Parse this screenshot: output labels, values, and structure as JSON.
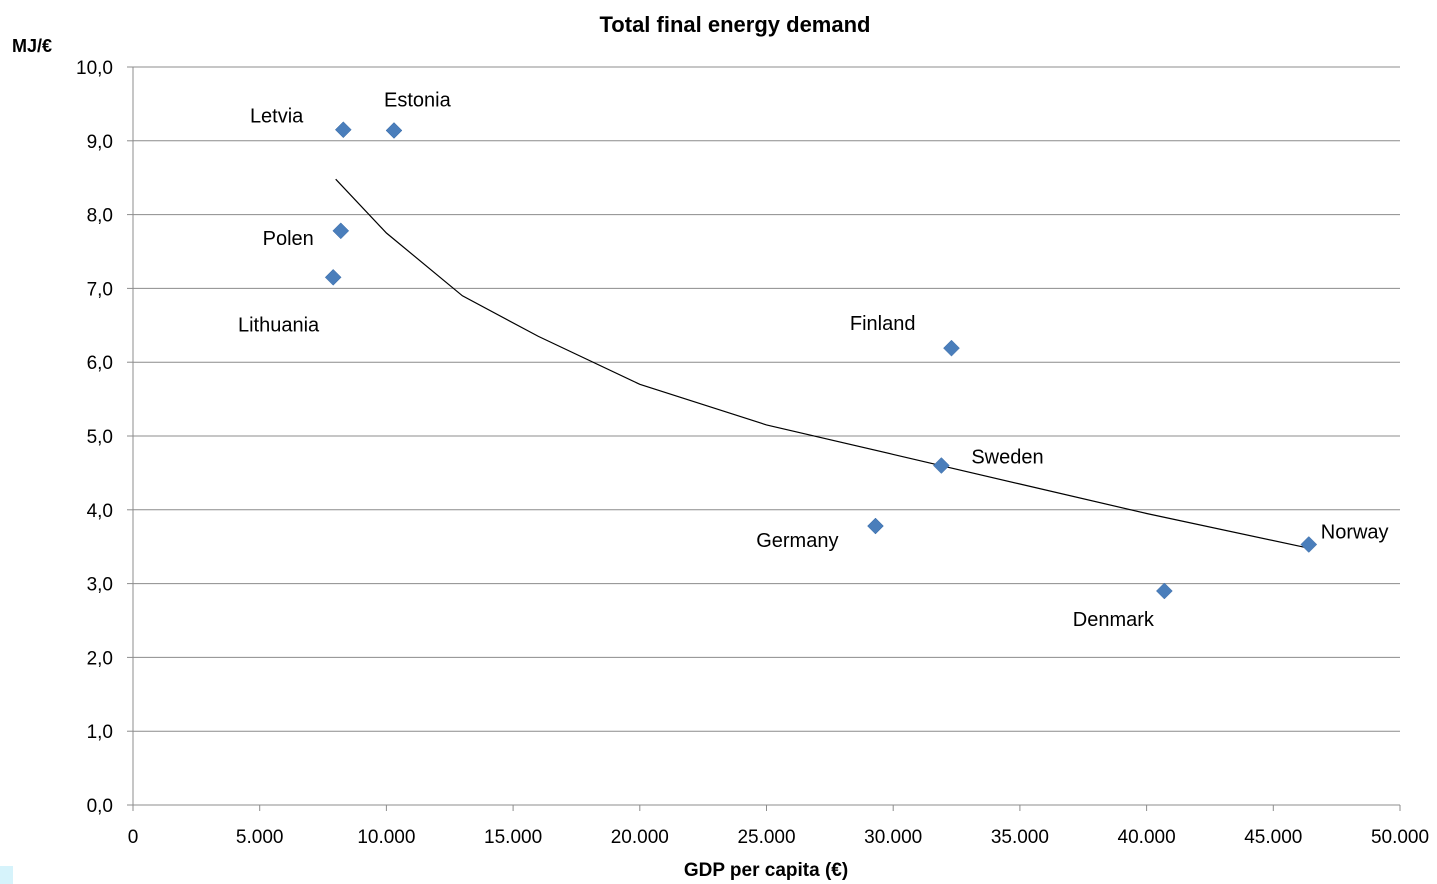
{
  "chart_data": {
    "type": "scatter",
    "title": "Total final energy demand",
    "xlabel": "GDP per capita (€)",
    "ylabel": "MJ/€",
    "xlim": [
      0,
      50000
    ],
    "ylim": [
      0,
      10
    ],
    "x_ticks": [
      0,
      5000,
      10000,
      15000,
      20000,
      25000,
      30000,
      35000,
      40000,
      45000,
      50000
    ],
    "x_tick_labels": [
      "0",
      "5.000",
      "10.000",
      "15.000",
      "20.000",
      "25.000",
      "30.000",
      "35.000",
      "40.000",
      "45.000",
      "50.000"
    ],
    "y_ticks": [
      0,
      1,
      2,
      3,
      4,
      5,
      6,
      7,
      8,
      9,
      10
    ],
    "y_tick_labels": [
      "0,0",
      "1,0",
      "2,0",
      "3,0",
      "4,0",
      "5,0",
      "6,0",
      "7,0",
      "8,0",
      "9,0",
      "10,0"
    ],
    "grid": "horizontal",
    "marker_color": "#4a7ebb",
    "trendline_color": "#000000",
    "points": [
      {
        "label": "Letvia",
        "x": 8300,
        "y": 9.15
      },
      {
        "label": "Estonia",
        "x": 10300,
        "y": 9.14
      },
      {
        "label": "Polen",
        "x": 8200,
        "y": 7.78
      },
      {
        "label": "Lithuania",
        "x": 7900,
        "y": 7.15
      },
      {
        "label": "Finland",
        "x": 32300,
        "y": 6.19
      },
      {
        "label": "Sweden",
        "x": 31900,
        "y": 4.6
      },
      {
        "label": "Germany",
        "x": 29300,
        "y": 3.78
      },
      {
        "label": "Denmark",
        "x": 40700,
        "y": 2.9
      },
      {
        "label": "Norway",
        "x": 46400,
        "y": 3.53
      }
    ],
    "trendline": {
      "type": "power",
      "x": [
        8000,
        10000,
        13000,
        16000,
        20000,
        25000,
        30000,
        35000,
        40000,
        46400
      ],
      "y": [
        8.48,
        7.75,
        6.9,
        6.35,
        5.7,
        5.15,
        4.75,
        4.35,
        3.95,
        3.48
      ]
    }
  }
}
